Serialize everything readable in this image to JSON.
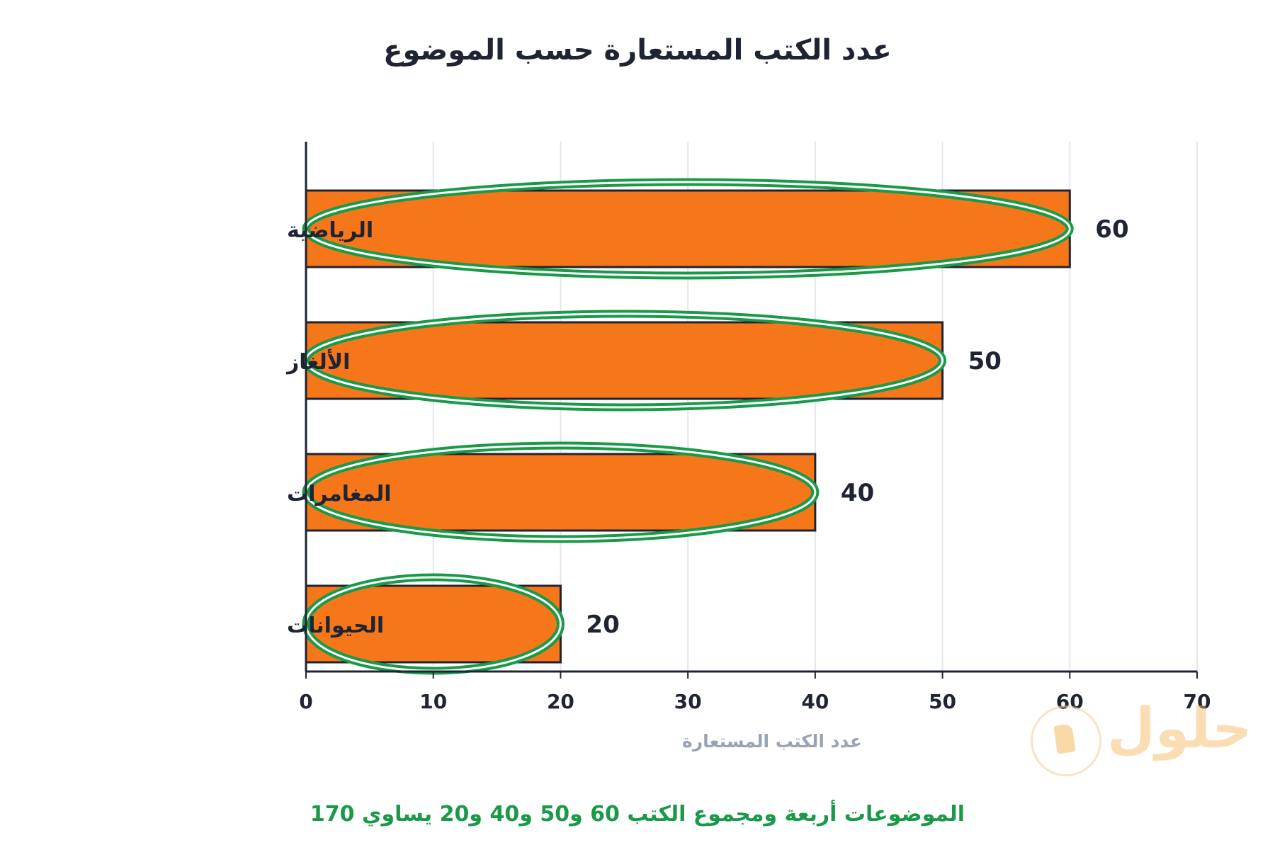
{
  "chart_data": {
    "type": "bar",
    "orientation": "horizontal",
    "title": "عدد الكتب المستعارة حسب الموضوع",
    "xlabel": "عدد الكتب المستعارة",
    "ylabel": "",
    "categories": [
      "الرياضية",
      "الألغاز",
      "المغامرات",
      "الحيوانات"
    ],
    "values": [
      60,
      50,
      40,
      20
    ],
    "data_labels": [
      "60",
      "50",
      "40",
      "20"
    ],
    "xlim": [
      0,
      70
    ],
    "xticks": [
      0,
      10,
      20,
      30,
      40,
      50,
      60,
      70
    ],
    "grid": "vertical",
    "legend": "none",
    "annotations": [
      "highlight ovals around each bar"
    ]
  },
  "colors": {
    "bar": "#f6761a",
    "bar_stroke": "#1f2433",
    "highlight": "#1a9a48",
    "grid": "#e3e7ee",
    "note": "#1a9a48"
  },
  "note": "الموضوعات أربعة ومجموع الكتب 60 و50 و40 و20 يساوي 170",
  "logo": {
    "text": "حلول",
    "icon": "book-seal-icon"
  }
}
